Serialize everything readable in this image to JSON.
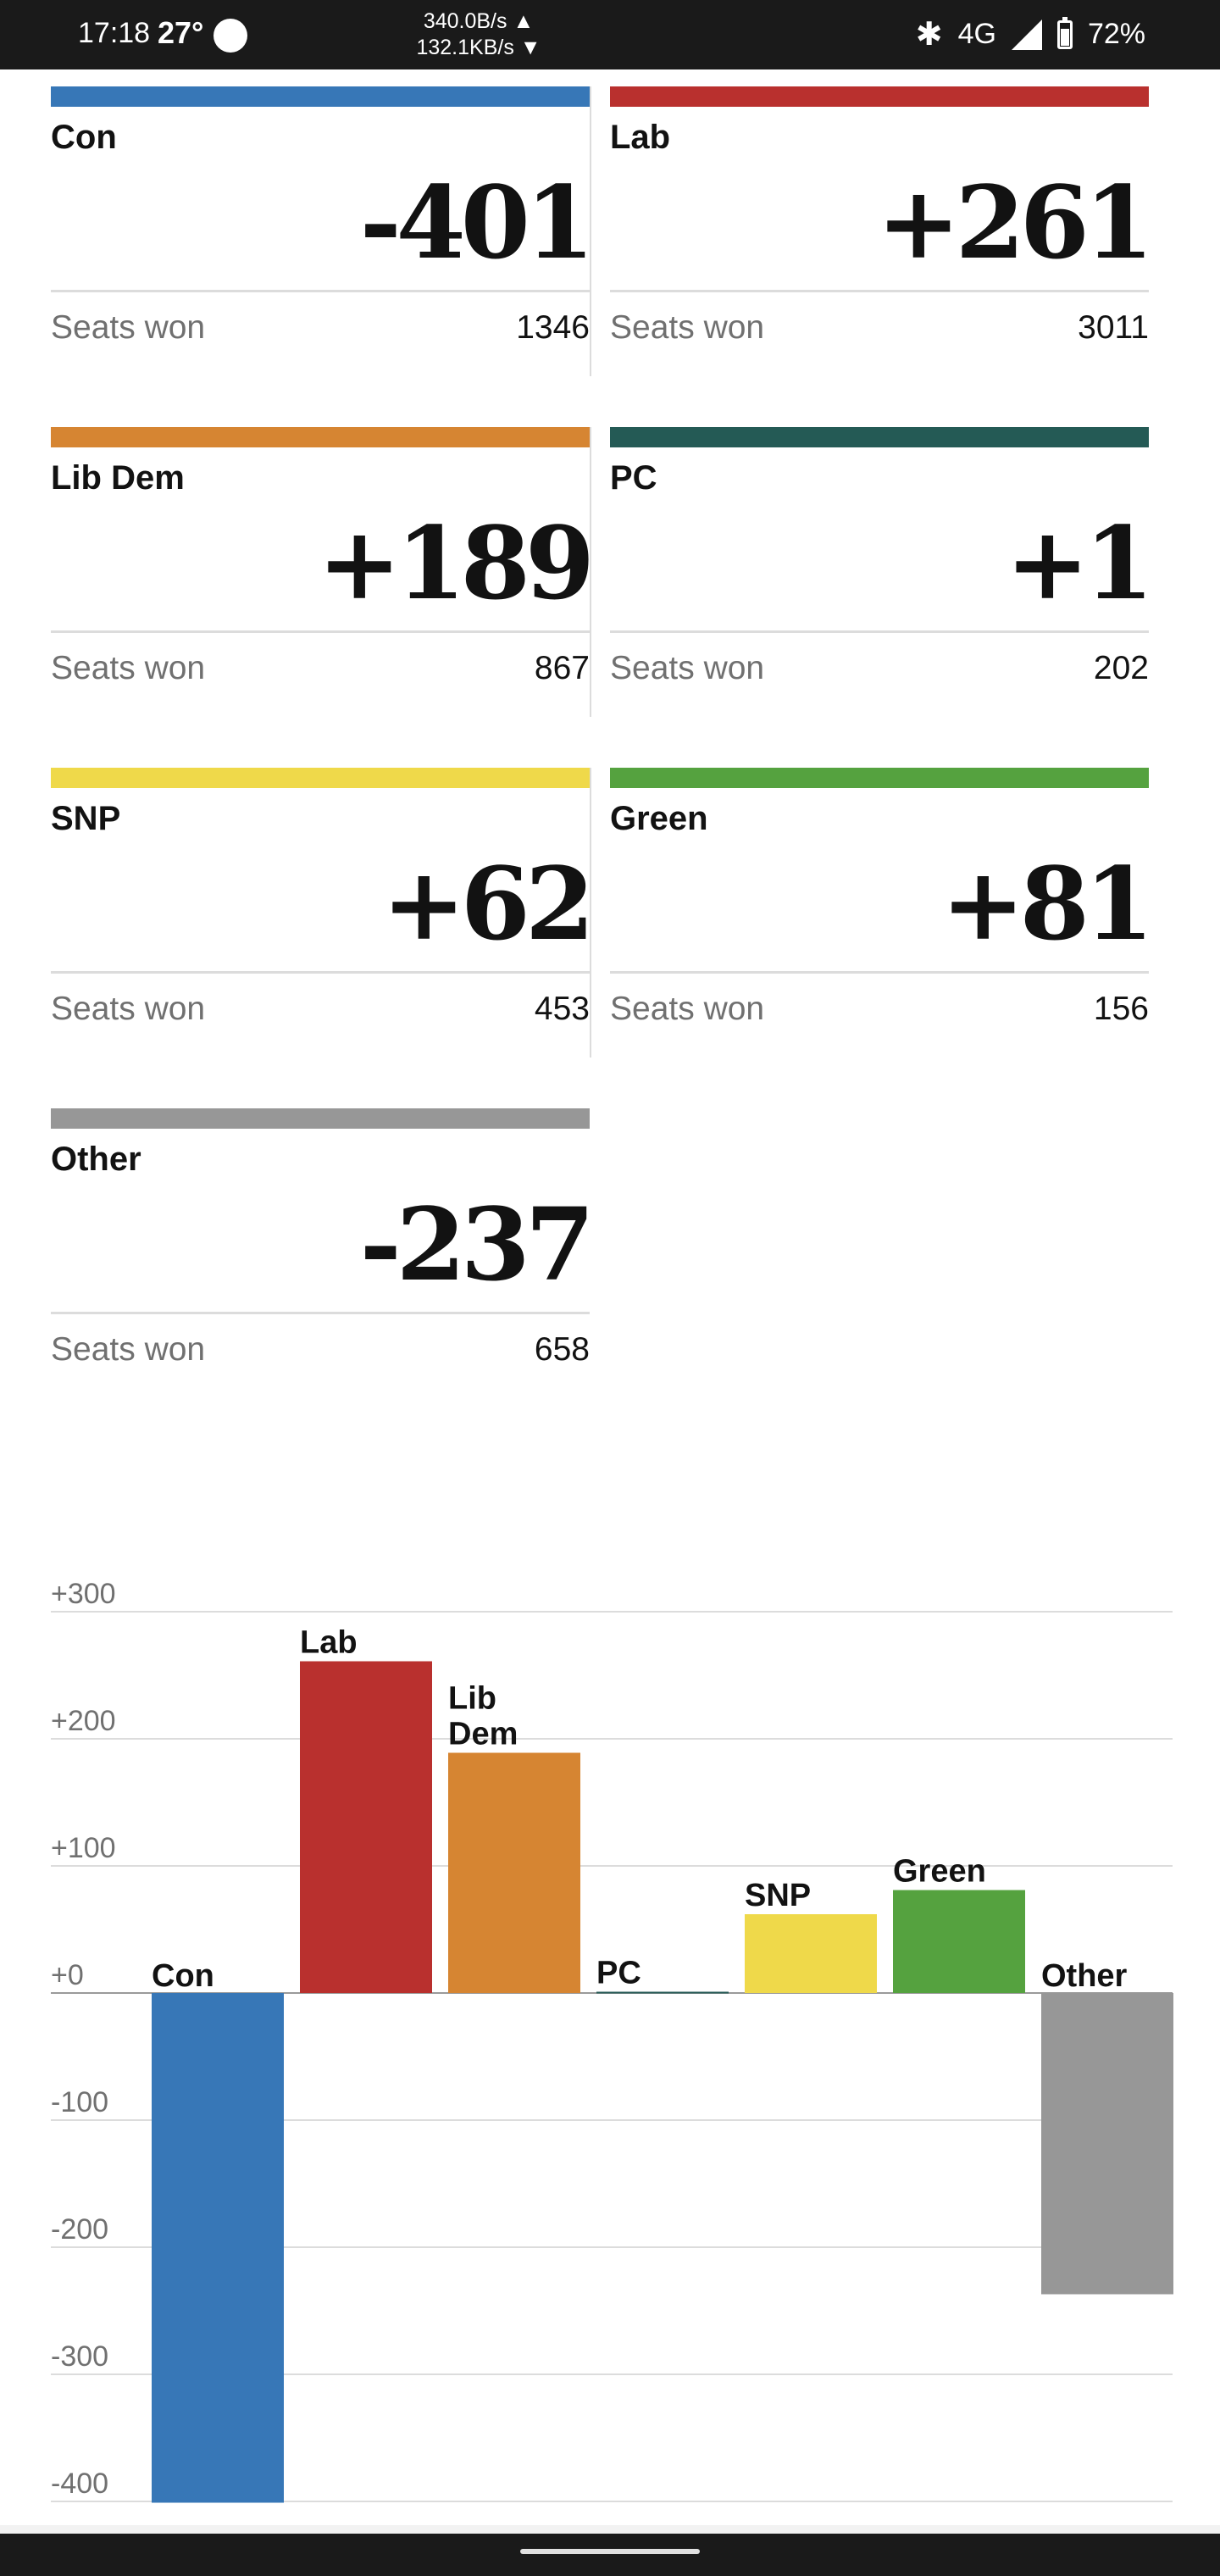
{
  "status_bar": {
    "time": "17:18",
    "temperature": "27°",
    "net_up": "340.0B/s ▲",
    "net_down": "132.1KB/s ▼",
    "network": "4G",
    "battery": "72%"
  },
  "seats_label": "Seats won",
  "parties": [
    {
      "name": "Con",
      "change": "-401",
      "seats": "1346",
      "color": "#3777b7"
    },
    {
      "name": "Lab",
      "change": "+261",
      "seats": "3011",
      "color": "#b9302e"
    },
    {
      "name": "Lib Dem",
      "change": "+189",
      "seats": "867",
      "color": "#d68532"
    },
    {
      "name": "PC",
      "change": "+1",
      "seats": "202",
      "color": "#245a55"
    },
    {
      "name": "SNP",
      "change": "+62",
      "seats": "453",
      "color": "#efd94a"
    },
    {
      "name": "Green",
      "change": "+81",
      "seats": "156",
      "color": "#55a23f"
    },
    {
      "name": "Other",
      "change": "-237",
      "seats": "658",
      "color": "#979797"
    }
  ],
  "chart_data": {
    "type": "bar",
    "title": "",
    "xlabel": "",
    "ylabel": "",
    "ylim": [
      -400,
      300
    ],
    "yticks": [
      "+300",
      "+200",
      "+100",
      "+0",
      "-100",
      "-200",
      "-300",
      "-400"
    ],
    "ytick_values": [
      300,
      200,
      100,
      0,
      -100,
      -200,
      -300,
      -400
    ],
    "categories": [
      "Con",
      "Lab",
      "Lib Dem",
      "PC",
      "SNP",
      "Green",
      "Other"
    ],
    "values": [
      -401,
      261,
      189,
      1,
      62,
      81,
      -237
    ],
    "colors": [
      "#3777b7",
      "#b9302e",
      "#d68532",
      "#245a55",
      "#efd94a",
      "#55a23f",
      "#979797"
    ]
  }
}
